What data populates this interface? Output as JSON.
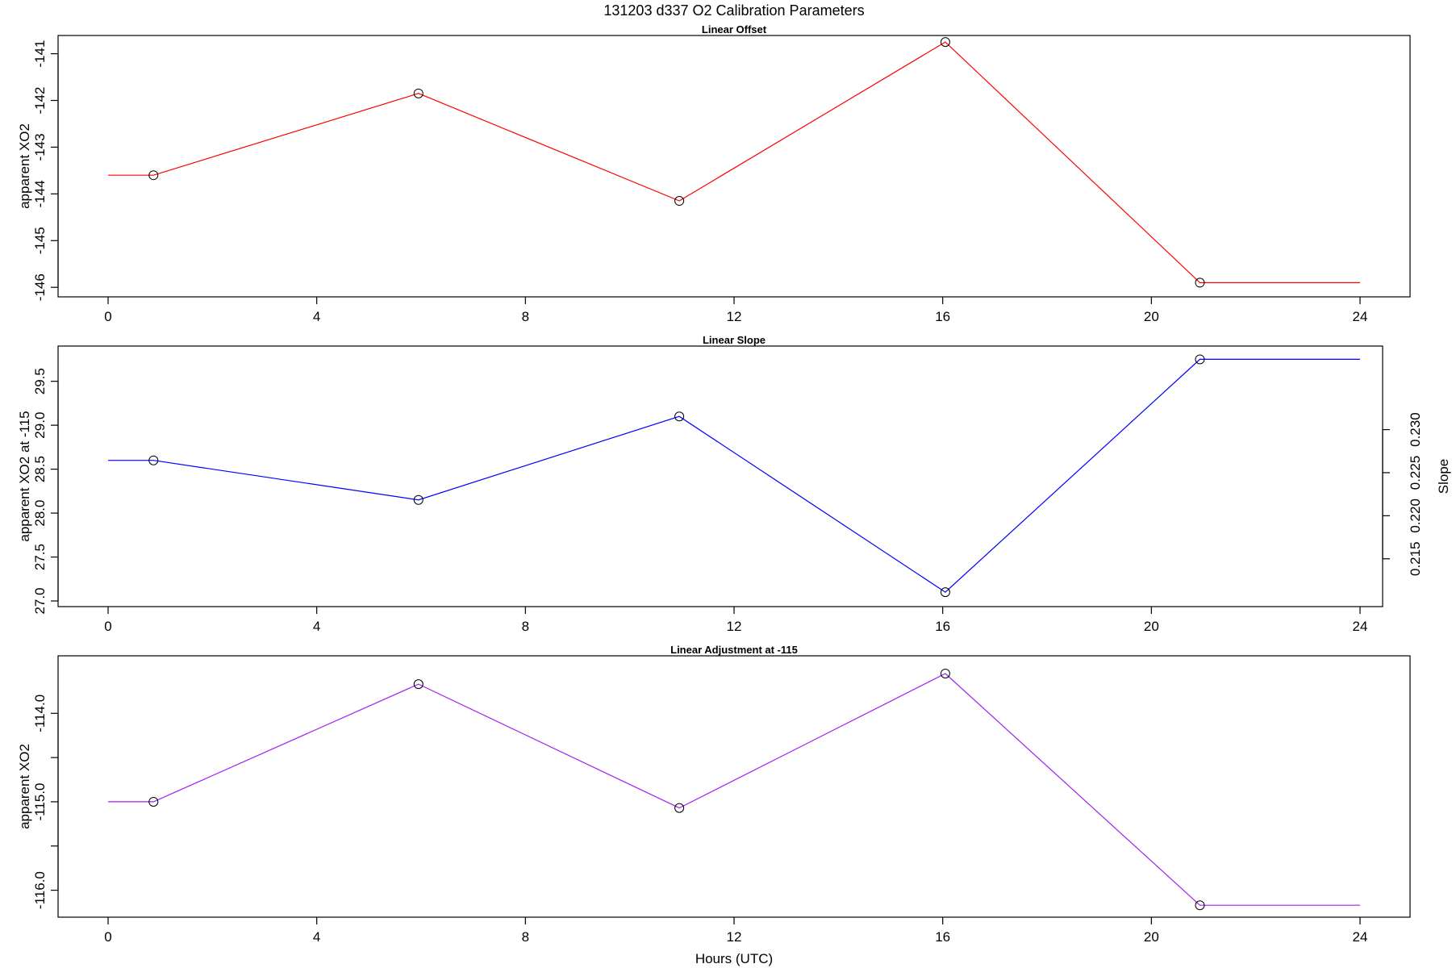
{
  "title": "131203   d337   O2 Calibration Parameters",
  "chart_data": [
    {
      "type": "line",
      "title": "Linear Offset",
      "ylabel": "apparent XO2",
      "xlabel": "",
      "xlim": [
        0,
        24
      ],
      "ylim": [
        -146.1,
        -140.8
      ],
      "x_ticks": [
        0,
        4,
        8,
        12,
        16,
        20,
        24
      ],
      "x_tick_labels": [
        "0",
        "4",
        "8",
        "12",
        "16",
        "20",
        "24"
      ],
      "y_ticks": [
        -141,
        -142,
        -143,
        -144,
        -145,
        -146
      ],
      "y_tick_labels": [
        "-141",
        "-142",
        "-143",
        "-144",
        "-145",
        "-146"
      ],
      "color": "#ff0000",
      "line_x": [
        0,
        0.87,
        5.95,
        10.95,
        16.05,
        20.93,
        24
      ],
      "line_y": [
        -143.6,
        -143.6,
        -141.85,
        -144.15,
        -140.75,
        -145.9,
        -145.9
      ],
      "points": [
        {
          "x": 0.87,
          "y": -143.6
        },
        {
          "x": 5.95,
          "y": -141.85
        },
        {
          "x": 10.95,
          "y": -144.15
        },
        {
          "x": 16.05,
          "y": -140.75
        },
        {
          "x": 20.93,
          "y": -145.9
        }
      ]
    },
    {
      "type": "line",
      "title": "Linear Slope",
      "ylabel": "apparent XO2 at -115",
      "ylabel_right": "Slope",
      "xlabel": "",
      "xlim": [
        0,
        24
      ],
      "ylim": [
        27.0,
        29.8
      ],
      "x_ticks": [
        0,
        4,
        8,
        12,
        16,
        20,
        24
      ],
      "x_tick_labels": [
        "0",
        "4",
        "8",
        "12",
        "16",
        "20",
        "24"
      ],
      "y_ticks": [
        27.0,
        27.5,
        28.0,
        28.5,
        29.0,
        29.5
      ],
      "y_tick_labels": [
        "27.0",
        "27.5",
        "28.0",
        "28.5",
        "29.0",
        "29.5"
      ],
      "y_right_ticks": [
        0.215,
        0.22,
        0.225,
        0.23
      ],
      "y_right_tick_labels": [
        "0.215",
        "0.220",
        "0.225",
        "0.230"
      ],
      "y_right_tick_positions": [
        27.48,
        27.97,
        28.46,
        28.95
      ],
      "color": "#0000ff",
      "line_x": [
        0,
        0.87,
        5.95,
        10.95,
        16.05,
        20.93,
        24
      ],
      "line_y": [
        28.6,
        28.6,
        28.15,
        29.1,
        27.1,
        29.75,
        29.75
      ],
      "points": [
        {
          "x": 0.87,
          "y": 28.6
        },
        {
          "x": 5.95,
          "y": 28.15
        },
        {
          "x": 10.95,
          "y": 29.1
        },
        {
          "x": 16.05,
          "y": 27.1
        },
        {
          "x": 20.93,
          "y": 29.75
        }
      ]
    },
    {
      "type": "line",
      "title": "Linear Adjustment at -115",
      "ylabel": "apparent XO2",
      "xlabel": "Hours (UTC)",
      "xlim": [
        0,
        24
      ],
      "ylim": [
        -116.25,
        -113.45
      ],
      "x_ticks": [
        0,
        4,
        8,
        12,
        16,
        20,
        24
      ],
      "x_tick_labels": [
        "0",
        "4",
        "8",
        "12",
        "16",
        "20",
        "24"
      ],
      "y_ticks": [
        -114.0,
        -114.5,
        -115.0,
        -115.5,
        -116.0
      ],
      "y_tick_labels": [
        "-114.0",
        "",
        "-115.0",
        "",
        "-116.0"
      ],
      "color": "#a020f0",
      "line_x": [
        0,
        0.87,
        5.95,
        10.95,
        16.05,
        20.93,
        24
      ],
      "line_y": [
        -115.0,
        -115.0,
        -113.67,
        -115.07,
        -113.55,
        -116.17,
        -116.17
      ],
      "points": [
        {
          "x": 0.87,
          "y": -115.0
        },
        {
          "x": 5.95,
          "y": -113.67
        },
        {
          "x": 10.95,
          "y": -115.07
        },
        {
          "x": 16.05,
          "y": -113.55
        },
        {
          "x": 20.93,
          "y": -116.17
        }
      ]
    }
  ]
}
